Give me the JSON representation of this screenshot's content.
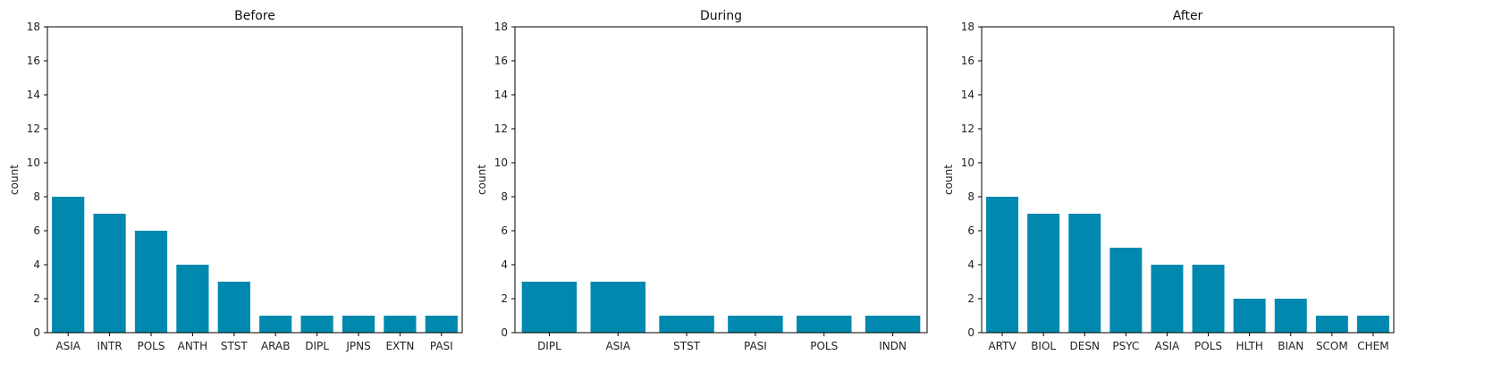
{
  "chart_data": [
    {
      "type": "bar",
      "title": "Before",
      "ylabel": "count",
      "xlabel": "",
      "ylim": [
        0,
        18
      ],
      "yticks": [
        0,
        2,
        4,
        6,
        8,
        10,
        12,
        14,
        16,
        18
      ],
      "categories": [
        "ASIA",
        "INTR",
        "POLS",
        "ANTH",
        "STST",
        "ARAB",
        "DIPL",
        "JPNS",
        "EXTN",
        "PASI"
      ],
      "values": [
        8,
        7,
        6,
        4,
        3,
        1,
        1,
        1,
        1,
        1
      ],
      "color": "#0088af",
      "grid": false,
      "legend": false
    },
    {
      "type": "bar",
      "title": "During",
      "ylabel": "count",
      "xlabel": "",
      "ylim": [
        0,
        18
      ],
      "yticks": [
        0,
        2,
        4,
        6,
        8,
        10,
        12,
        14,
        16,
        18
      ],
      "categories": [
        "DIPL",
        "ASIA",
        "STST",
        "PASI",
        "POLS",
        "INDN"
      ],
      "values": [
        3,
        3,
        1,
        1,
        1,
        1
      ],
      "color": "#0088af",
      "grid": false,
      "legend": false
    },
    {
      "type": "bar",
      "title": "After",
      "ylabel": "count",
      "xlabel": "",
      "ylim": [
        0,
        18
      ],
      "yticks": [
        0,
        2,
        4,
        6,
        8,
        10,
        12,
        14,
        16,
        18
      ],
      "categories": [
        "ARTV",
        "BIOL",
        "DESN",
        "PSYC",
        "ASIA",
        "POLS",
        "HLTH",
        "BIAN",
        "SCOM",
        "CHEM"
      ],
      "values": [
        8,
        7,
        7,
        5,
        4,
        4,
        2,
        2,
        1,
        1
      ],
      "color": "#0088af",
      "grid": false,
      "legend": false
    }
  ]
}
